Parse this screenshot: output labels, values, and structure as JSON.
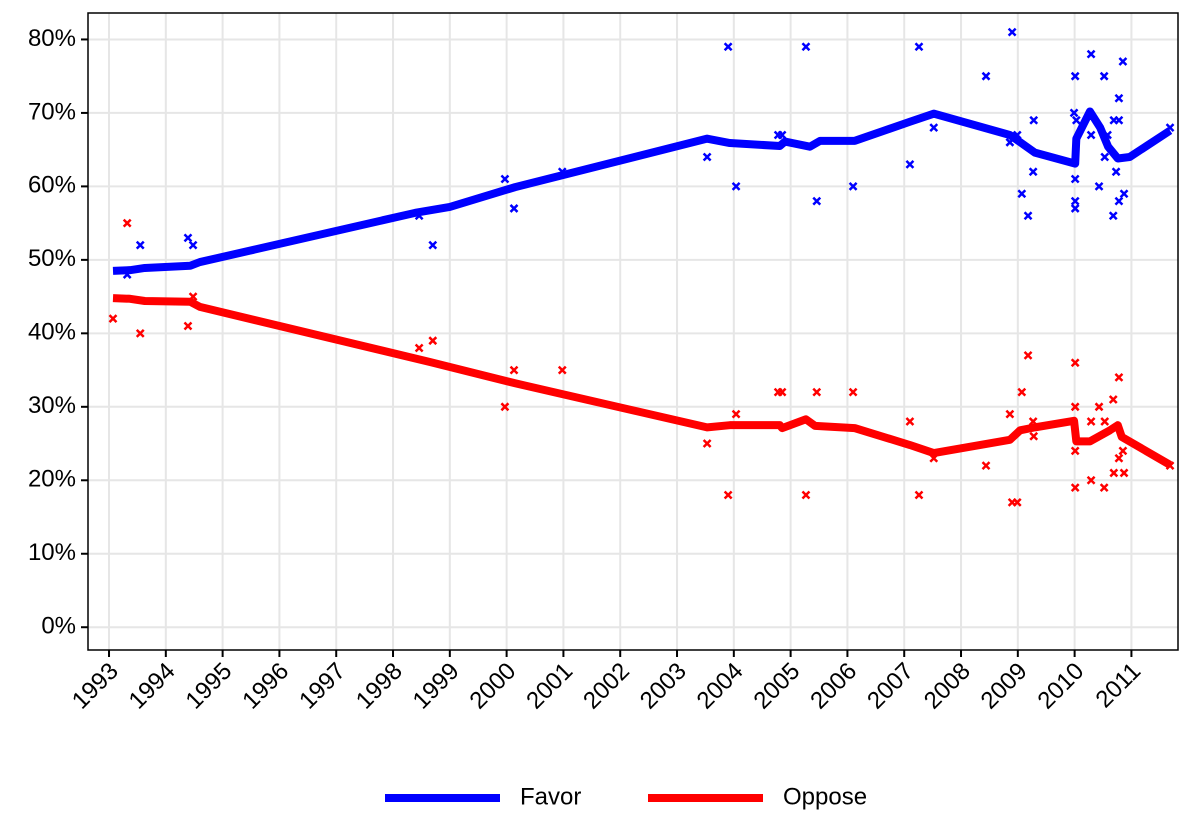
{
  "chart_data": {
    "type": "line",
    "xlim": [
      1992.63,
      2011.82
    ],
    "ylim": [
      -3.1,
      83.6
    ],
    "xticks": [
      1993,
      1994,
      1995,
      1996,
      1997,
      1998,
      1999,
      2000,
      2001,
      2002,
      2003,
      2004,
      2005,
      2006,
      2007,
      2008,
      2009,
      2010,
      2011
    ],
    "yticks": [
      {
        "value": 0,
        "label": "0%"
      },
      {
        "value": 10,
        "label": "10%"
      },
      {
        "value": 20,
        "label": "20%"
      },
      {
        "value": 30,
        "label": "30%"
      },
      {
        "value": 40,
        "label": "40%"
      },
      {
        "value": 50,
        "label": "50%"
      },
      {
        "value": 60,
        "label": "60%"
      },
      {
        "value": 70,
        "label": "70%"
      },
      {
        "value": 80,
        "label": "80%"
      }
    ],
    "grid": true,
    "legend": "bottom",
    "series": [
      {
        "name": "Favor",
        "color": "#0000ff",
        "x": [
          1993.07,
          1993.37,
          1993.63,
          1994.43,
          1994.6,
          1998.39,
          1999.0,
          2000.15,
          2003.53,
          2003.93,
          2004.81,
          2004.9,
          2005.34,
          2005.52,
          2006.13,
          2007.1,
          2007.52,
          2008.86,
          2009.3,
          2010.01,
          2010.03,
          2010.27,
          2010.45,
          2010.59,
          2010.76,
          2010.97,
          2011.68
        ],
        "values": [
          48.5,
          48.6,
          48.9,
          49.2,
          49.7,
          56.4,
          57.2,
          59.9,
          66.5,
          65.9,
          65.5,
          66.1,
          65.4,
          66.2,
          66.2,
          68.8,
          69.9,
          67.0,
          64.6,
          63.1,
          66.5,
          70.2,
          68.0,
          65.4,
          63.8,
          64.0,
          67.6
        ],
        "points_x": [
          1993.32,
          1993.55,
          1994.39,
          1994.48,
          1998.46,
          1998.7,
          1999.97,
          2000.13,
          2000.98,
          2003.53,
          2003.9,
          2004.04,
          2004.78,
          2004.85,
          2005.27,
          2005.46,
          2006.1,
          2007.1,
          2007.26,
          2007.52,
          2008.44,
          2008.9,
          2008.86,
          2008.99,
          2009.07,
          2009.18,
          2009.27,
          2009.28,
          2010.01,
          2009.99,
          2010.03,
          2010.01,
          2010.01,
          2010.01,
          2010.29,
          2010.29,
          2010.43,
          2010.52,
          2010.53,
          2010.58,
          2010.68,
          2010.69,
          2010.73,
          2010.78,
          2010.78,
          2010.78,
          2010.85,
          2010.87,
          2011.68
        ],
        "points_values": [
          48,
          52,
          53,
          52,
          56,
          52,
          61,
          57,
          62,
          64,
          79,
          60,
          67,
          67,
          79,
          58,
          60,
          63,
          79,
          68,
          75,
          81,
          66,
          67,
          59,
          56,
          62,
          69,
          75,
          70,
          69,
          61,
          58,
          57,
          67,
          78,
          60,
          75,
          64,
          67,
          56,
          69,
          62,
          69,
          72,
          58,
          77,
          59,
          68
        ]
      },
      {
        "name": "Oppose",
        "color": "#ff0000",
        "x": [
          1993.07,
          1993.37,
          1993.63,
          1994.43,
          1994.6,
          1998.65,
          2000.15,
          2003.53,
          2003.93,
          2004.81,
          2004.85,
          2005.27,
          2005.43,
          2006.13,
          2007.1,
          2007.52,
          2008.86,
          2009.04,
          2009.3,
          2009.99,
          2010.03,
          2010.27,
          2010.62,
          2010.76,
          2010.83,
          2011.68
        ],
        "values": [
          44.8,
          44.7,
          44.4,
          44.3,
          43.6,
          36.1,
          33.2,
          27.2,
          27.5,
          27.5,
          27.1,
          28.3,
          27.4,
          27.1,
          24.8,
          23.7,
          25.5,
          26.8,
          27.2,
          28.1,
          25.3,
          25.3,
          26.8,
          27.5,
          25.9,
          22.1
        ],
        "points_x": [
          1993.07,
          1993.32,
          1993.55,
          1994.39,
          1994.48,
          1998.46,
          1998.7,
          1999.97,
          2000.13,
          2000.98,
          2003.53,
          2003.9,
          2004.04,
          2004.78,
          2004.85,
          2005.27,
          2005.46,
          2006.1,
          2007.1,
          2007.26,
          2007.52,
          2008.44,
          2008.86,
          2008.9,
          2008.99,
          2009.07,
          2009.18,
          2009.27,
          2009.28,
          2010.01,
          2010.01,
          2010.01,
          2010.01,
          2010.29,
          2010.29,
          2010.43,
          2010.52,
          2010.53,
          2010.68,
          2010.69,
          2010.78,
          2010.78,
          2010.85,
          2010.87,
          2011.68
        ],
        "points_values": [
          42,
          55,
          40,
          41,
          45,
          38,
          39,
          30,
          35,
          35,
          25,
          18,
          29,
          32,
          32,
          18,
          32,
          32,
          28,
          18,
          23,
          22,
          29,
          17,
          17,
          32,
          37,
          28,
          26,
          36,
          30,
          24,
          19,
          28,
          20,
          30,
          19,
          28,
          31,
          21,
          34,
          23,
          24,
          21,
          22
        ]
      }
    ]
  }
}
